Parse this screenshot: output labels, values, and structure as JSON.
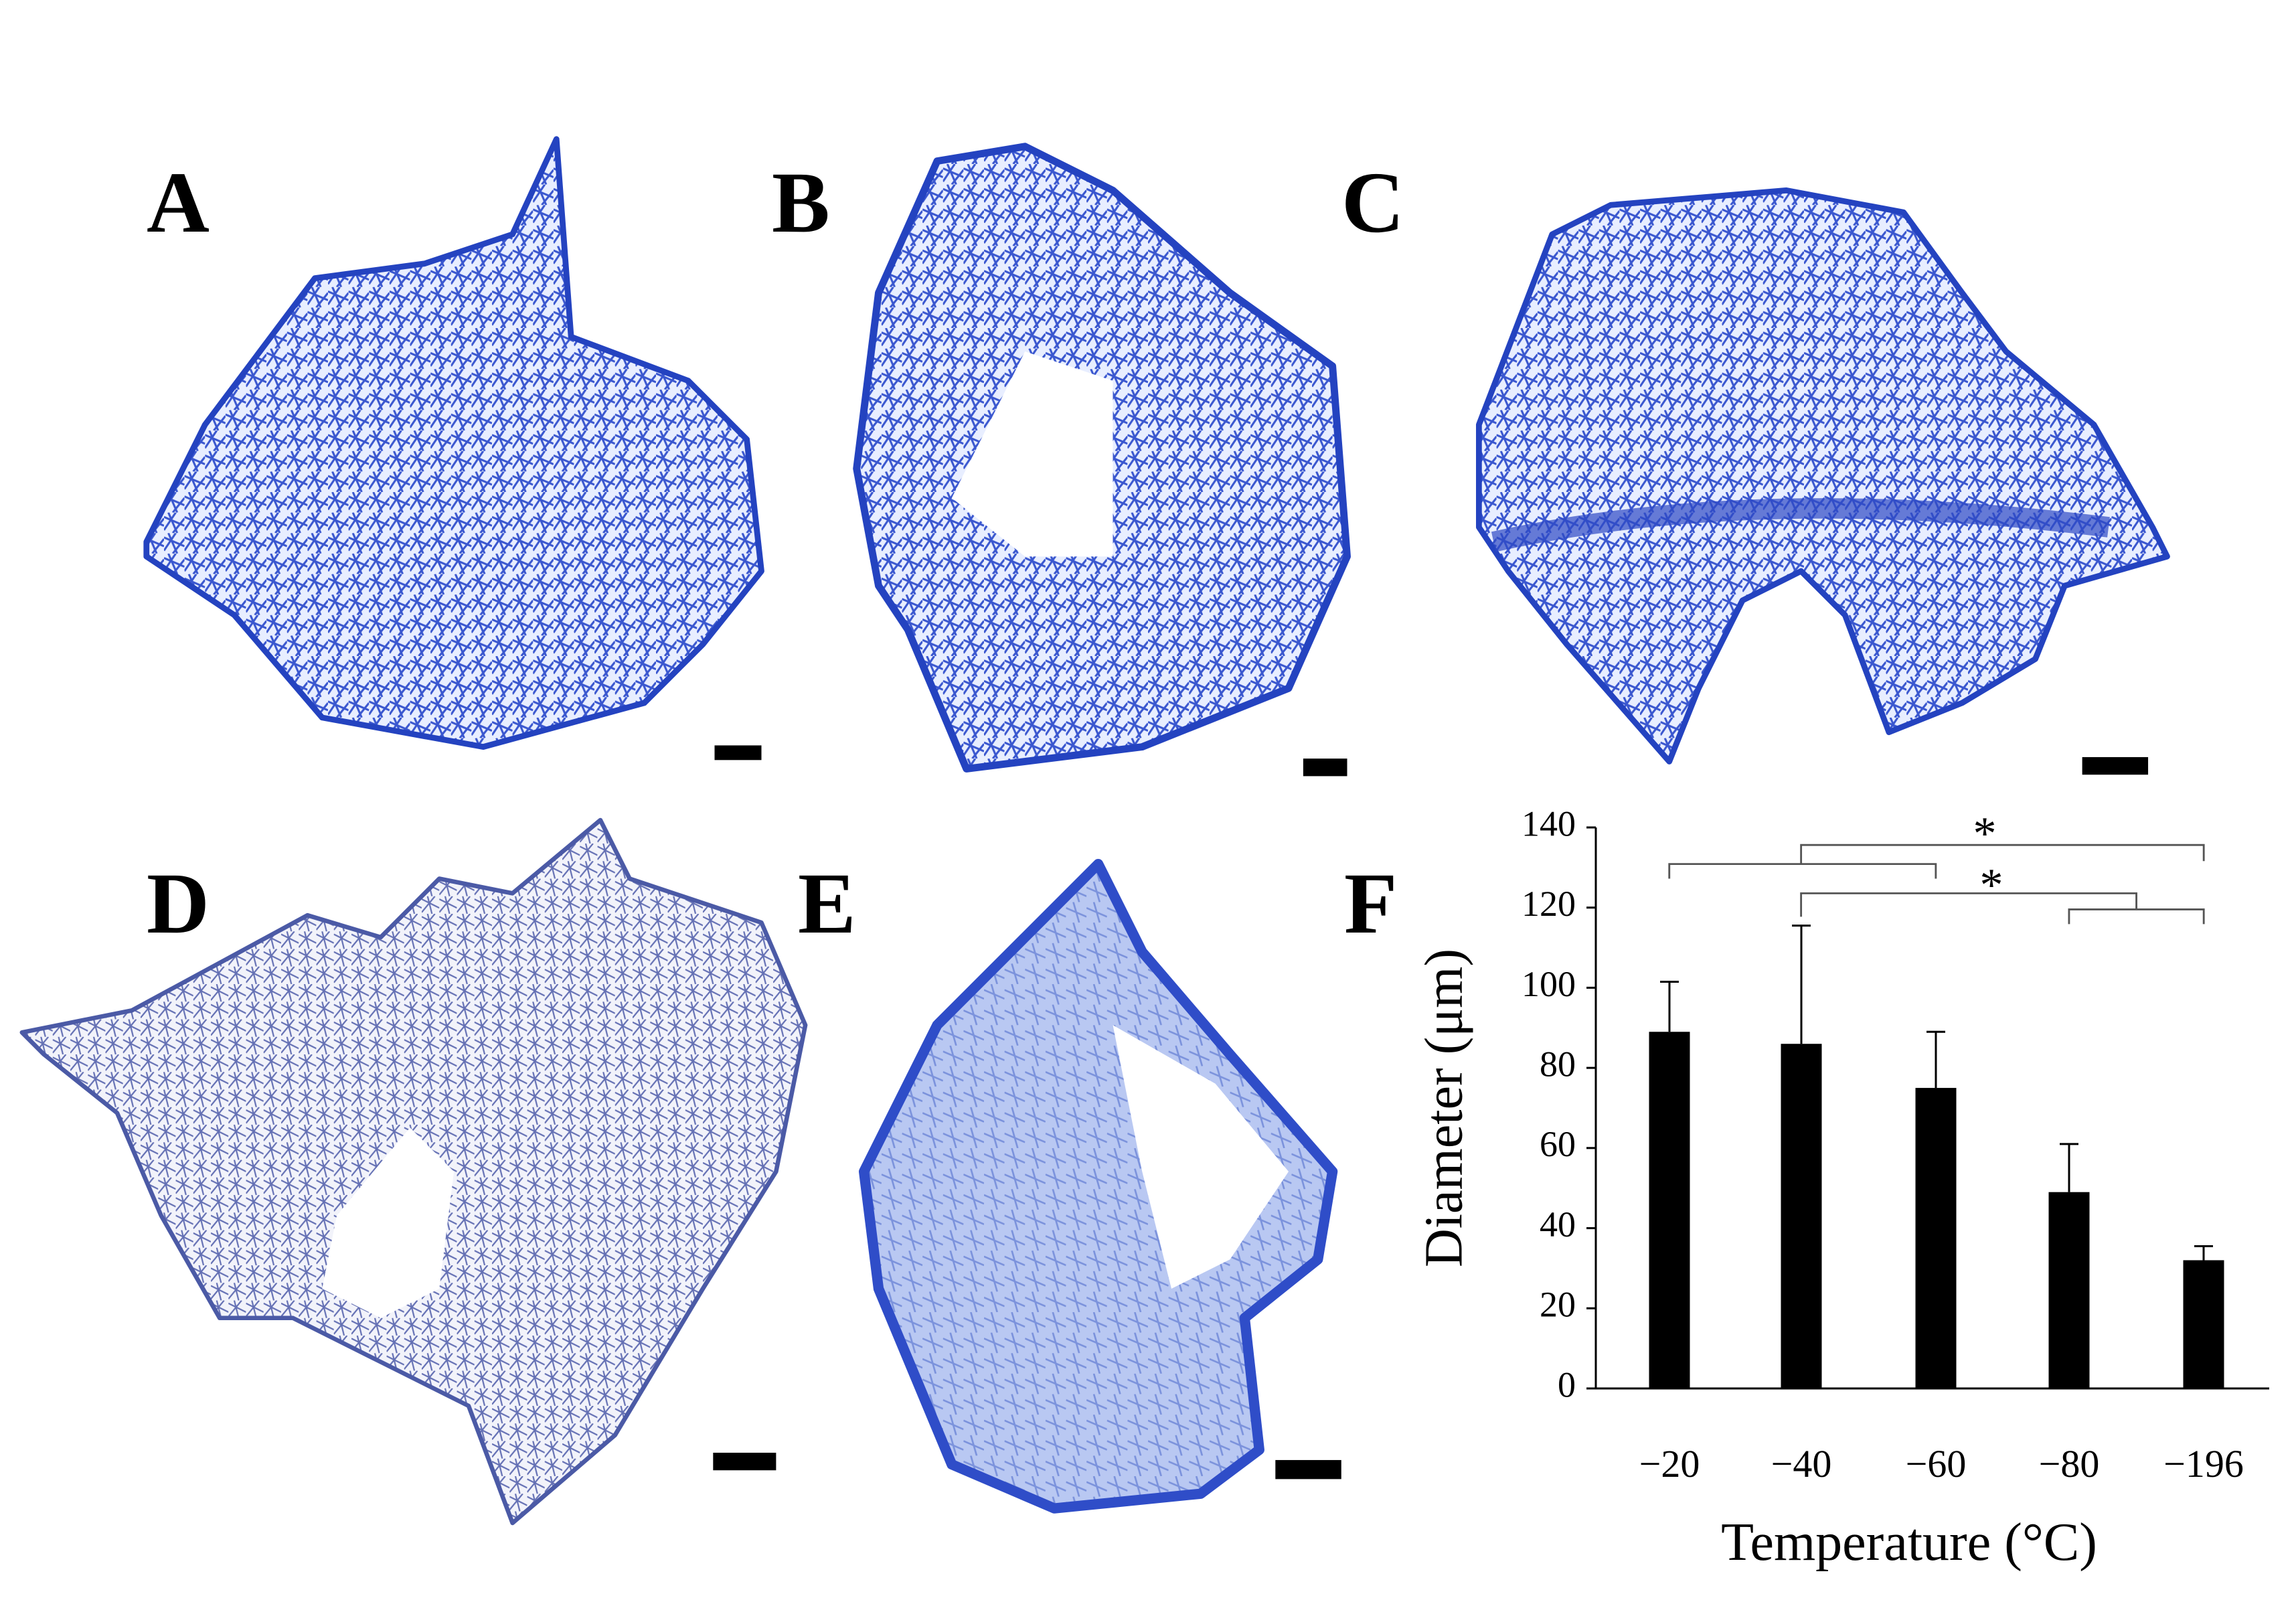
{
  "panel_labels": [
    "A",
    "B",
    "C",
    "D",
    "E",
    "F"
  ],
  "chart_data": {
    "type": "bar",
    "ylabel": "Diameter (μm)",
    "xlabel": "Temperature (°C)",
    "categories": [
      "−20",
      "−40",
      "−60",
      "−80",
      "−196"
    ],
    "values": [
      89,
      86,
      75,
      49,
      32
    ],
    "errors": [
      12.5,
      29.5,
      14,
      12,
      3.5
    ],
    "color": "#000000",
    "ylim": [
      0,
      140
    ],
    "yticks": [
      0,
      20,
      40,
      60,
      80,
      100,
      120,
      140
    ],
    "annotations": [
      "*",
      "*"
    ]
  }
}
